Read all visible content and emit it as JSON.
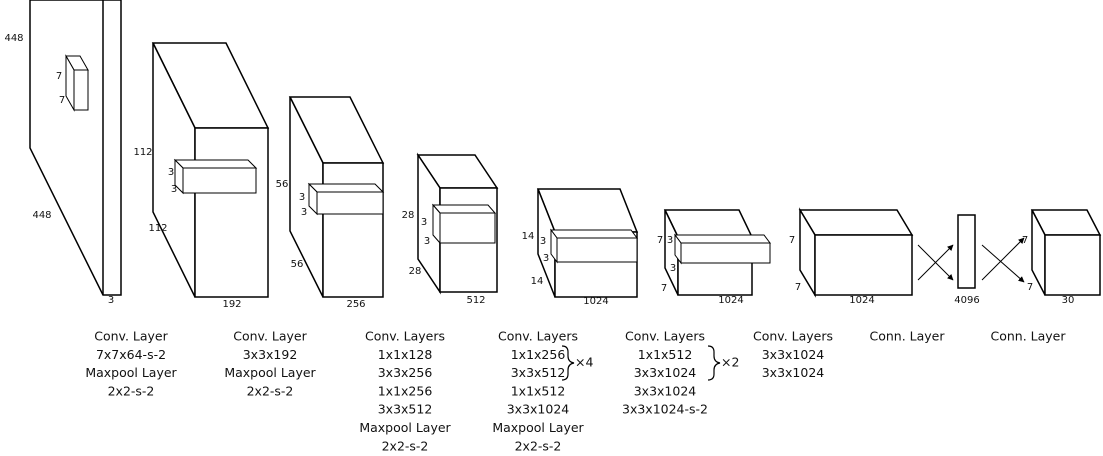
{
  "blocks": [
    {
      "labels": [
        "448",
        "7",
        "7",
        "448",
        "3"
      ]
    },
    {
      "labels": [
        "112",
        "3",
        "3",
        "112",
        "192"
      ]
    },
    {
      "labels": [
        "56",
        "3",
        "3",
        "56",
        "256"
      ]
    },
    {
      "labels": [
        "28",
        "3",
        "3",
        "28",
        "512"
      ]
    },
    {
      "labels": [
        "14",
        "3",
        "3",
        "14",
        "1024"
      ]
    },
    {
      "labels": [
        "7",
        "3",
        "3",
        "7",
        "1024"
      ]
    },
    {
      "labels": [
        "7",
        "7",
        "1024"
      ]
    },
    {
      "labels": [
        "4096"
      ]
    },
    {
      "labels": [
        "7",
        "7",
        "30"
      ]
    }
  ],
  "captions": [
    {
      "lines": [
        "Conv. Layer",
        "7x7x64-s-2",
        "Maxpool Layer",
        "2x2-s-2"
      ]
    },
    {
      "lines": [
        "Conv. Layer",
        "3x3x192",
        "Maxpool Layer",
        "2x2-s-2"
      ]
    },
    {
      "lines": [
        "Conv. Layers",
        "1x1x128",
        "3x3x256",
        "1x1x256",
        "3x3x512",
        "Maxpool Layer",
        "2x2-s-2"
      ]
    },
    {
      "lines": [
        "Conv. Layers",
        "1x1x256",
        "3x3x512",
        "1x1x512",
        "3x3x1024",
        "Maxpool Layer",
        "2x2-s-2"
      ],
      "repeat": "×4"
    },
    {
      "lines": [
        "Conv. Layers",
        "1x1x512",
        "3x3x1024",
        "3x3x1024",
        "3x3x1024-s-2"
      ],
      "repeat": "×2"
    },
    {
      "lines": [
        "Conv. Layers",
        "3x3x1024",
        "3x3x1024"
      ]
    },
    {
      "lines": [
        "Conn. Layer"
      ]
    },
    {
      "lines": [
        "Conn. Layer"
      ]
    }
  ]
}
